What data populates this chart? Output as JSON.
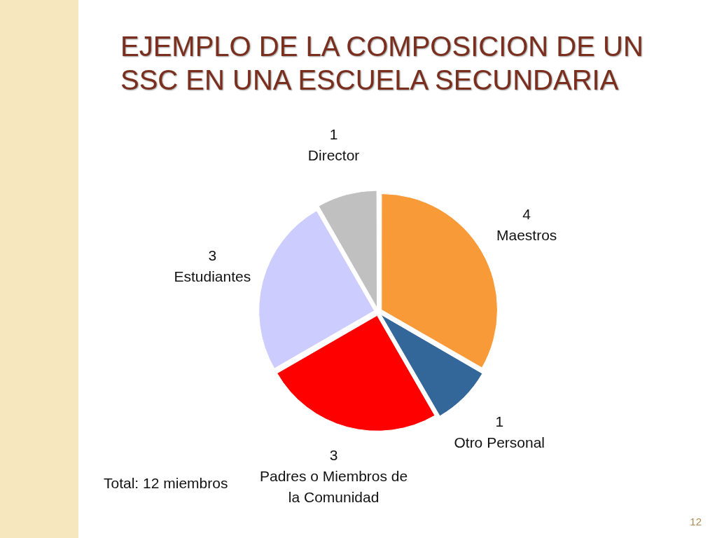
{
  "chart_data": {
    "type": "pie",
    "title": "EJEMPLO DE LA COMPOSICION DE UN SSC EN UNA ESCUELA SECUNDARIA",
    "categories": [
      "Maestros",
      "Otro Personal",
      "Padres o Miembros de la Comunidad",
      "Estudiantes",
      "Director"
    ],
    "values": [
      4,
      1,
      3,
      3,
      1
    ],
    "colors": [
      "#f99a38",
      "#336699",
      "#ff0000",
      "#ccccff",
      "#c0c0c0"
    ],
    "data_labels": true,
    "annotations": [
      "Total: 12 miembros",
      "12"
    ]
  }
}
